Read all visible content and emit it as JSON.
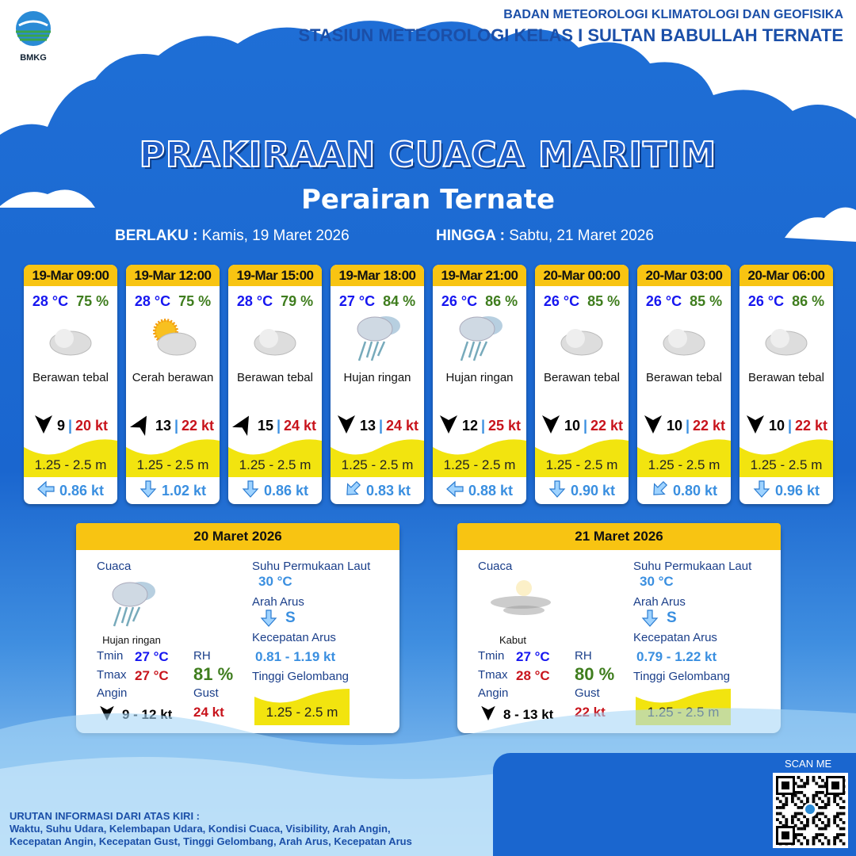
{
  "header": {
    "logo_text": "BMKG",
    "org_line1": "BADAN METEOROLOGI KLIMATOLOGI DAN GEOFISIKA",
    "org_line2": "STASIUN METEOROLOGI KELAS I SULTAN BABULLAH TERNATE"
  },
  "title": "PRAKIRAAN CUACA MARITIM",
  "subtitle": "Perairan Ternate",
  "validity": {
    "from_label": "BERLAKU :",
    "from_value": "Kamis, 19 Maret 2026",
    "to_label": "HINGGA :",
    "to_value": "Sabtu, 21 Maret 2026"
  },
  "forecasts": [
    {
      "time": "19-Mar 09:00",
      "temp": "28 °C",
      "rh": "75 %",
      "icon": "cloudy",
      "condition": "Berawan tebal",
      "wind_dir_deg": 180,
      "wind_speed": "9",
      "gust": "20 kt",
      "wave": "1.25 - 2.5 m",
      "current_dir_deg": 270,
      "current_speed": "0.86 kt"
    },
    {
      "time": "19-Mar 12:00",
      "temp": "28 °C",
      "rh": "75 %",
      "icon": "partly-cloudy",
      "condition": "Cerah berawan",
      "wind_dir_deg": 30,
      "wind_speed": "13",
      "gust": "22 kt",
      "wave": "1.25 - 2.5 m",
      "current_dir_deg": 180,
      "current_speed": "1.02 kt"
    },
    {
      "time": "19-Mar 15:00",
      "temp": "28 °C",
      "rh": "79 %",
      "icon": "cloudy",
      "condition": "Berawan tebal",
      "wind_dir_deg": 30,
      "wind_speed": "15",
      "gust": "24 kt",
      "wave": "1.25 - 2.5 m",
      "current_dir_deg": 180,
      "current_speed": "0.86 kt"
    },
    {
      "time": "19-Mar 18:00",
      "temp": "27 °C",
      "rh": "84 %",
      "icon": "rain",
      "condition": "Hujan ringan",
      "wind_dir_deg": 180,
      "wind_speed": "13",
      "gust": "24 kt",
      "wave": "1.25 - 2.5 m",
      "current_dir_deg": 225,
      "current_speed": "0.83 kt"
    },
    {
      "time": "19-Mar 21:00",
      "temp": "26 °C",
      "rh": "86 %",
      "icon": "rain",
      "condition": "Hujan ringan",
      "wind_dir_deg": 180,
      "wind_speed": "12",
      "gust": "25 kt",
      "wave": "1.25 - 2.5 m",
      "current_dir_deg": 270,
      "current_speed": "0.88 kt"
    },
    {
      "time": "20-Mar 00:00",
      "temp": "26 °C",
      "rh": "85 %",
      "icon": "cloudy",
      "condition": "Berawan tebal",
      "wind_dir_deg": 180,
      "wind_speed": "10",
      "gust": "22 kt",
      "wave": "1.25 - 2.5 m",
      "current_dir_deg": 180,
      "current_speed": "0.90 kt"
    },
    {
      "time": "20-Mar 03:00",
      "temp": "26 °C",
      "rh": "85 %",
      "icon": "cloudy",
      "condition": "Berawan tebal",
      "wind_dir_deg": 180,
      "wind_speed": "10",
      "gust": "22 kt",
      "wave": "1.25 - 2.5 m",
      "current_dir_deg": 225,
      "current_speed": "0.80 kt"
    },
    {
      "time": "20-Mar 06:00",
      "temp": "26 °C",
      "rh": "86 %",
      "icon": "cloudy",
      "condition": "Berawan tebal",
      "wind_dir_deg": 180,
      "wind_speed": "10",
      "gust": "22 kt",
      "wave": "1.25 - 2.5 m",
      "current_dir_deg": 180,
      "current_speed": "0.96 kt"
    }
  ],
  "labels": {
    "weather": "Cuaca",
    "sst": "Suhu Permukaan Laut",
    "current_dir": "Arah Arus",
    "current_speed": "Kecepatan Arus",
    "wave": "Tinggi Gelombang",
    "tmin": "Tmin",
    "tmax": "Tmax",
    "rh": "RH",
    "wind": "Angin",
    "gust": "Gust"
  },
  "daily": [
    {
      "date": "20 Maret 2026",
      "icon": "rain",
      "condition": "Hujan ringan",
      "tmin": "27 °C",
      "tmax": "27 °C",
      "rh": "81 %",
      "wind": "9  - 12 kt",
      "gust": "24 kt",
      "sst": "30 °C",
      "current_dir": "S",
      "current_speed": "0.81  - 1.19 kt",
      "wave": "1.25 - 2.5 m"
    },
    {
      "date": "21 Maret 2026",
      "icon": "fog",
      "condition": "Kabut",
      "tmin": "27 °C",
      "tmax": "28 °C",
      "rh": "80 %",
      "wind": "8  - 13 kt",
      "gust": "22 kt",
      "sst": "30 °C",
      "current_dir": "S",
      "current_speed": "0.79 - 1.22 kt",
      "wave": "1.25 - 2.5 m"
    }
  ],
  "footer": {
    "title": "URUTAN INFORMASI DARI ATAS KIRI :",
    "line1": "Waktu, Suhu Udara, Kelembapan Udara, Kondisi Cuaca, Visibility, Arah Angin,",
    "line2": "Kecepatan Angin, Kecepatan Gust, Tinggi Gelombang, Arah Arus, Kecepatan Arus"
  },
  "qr": {
    "label": "SCAN ME"
  }
}
